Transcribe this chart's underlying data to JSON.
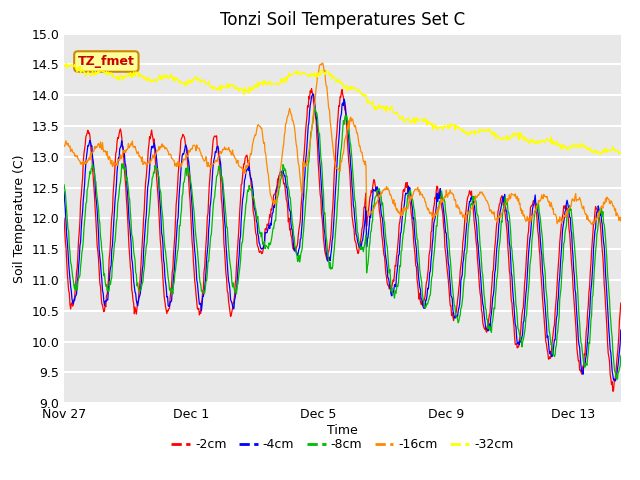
{
  "title": "Tonzi Soil Temperatures Set C",
  "xlabel": "Time",
  "ylabel": "Soil Temperature (C)",
  "ylim": [
    9.0,
    15.0
  ],
  "yticks": [
    9.0,
    9.5,
    10.0,
    10.5,
    11.0,
    11.5,
    12.0,
    12.5,
    13.0,
    13.5,
    14.0,
    14.5,
    15.0
  ],
  "colors": {
    "-2cm": "#ff0000",
    "-4cm": "#0000ff",
    "-8cm": "#00bb00",
    "-16cm": "#ff8800",
    "-32cm": "#ffff00"
  },
  "legend_label": "TZ_fmet",
  "legend_bg": "#ffff99",
  "legend_border": "#cc8800",
  "x_tick_labels": [
    "Nov 27",
    "Dec 1",
    "Dec 5",
    "Dec 9",
    "Dec 13"
  ],
  "x_tick_positions": [
    0,
    4,
    8,
    12,
    16
  ],
  "total_days": 17.5
}
